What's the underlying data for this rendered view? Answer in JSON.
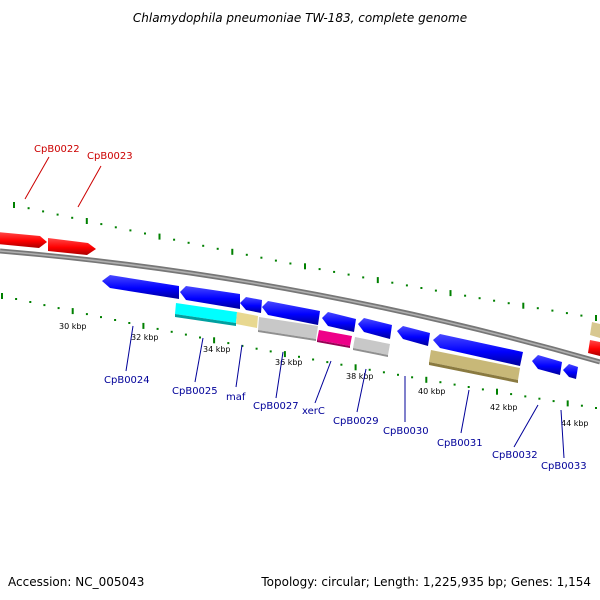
{
  "title": "Chlamydophila pneumoniae TW-183, complete genome",
  "accession": "Accession: NC_005043",
  "summary": "Topology: circular; Length: 1,225,935 bp; Genes: 1,154",
  "colors": {
    "forward_gene": "#ff0000",
    "reverse_gene": "#0000ff",
    "label_forward": "#cc0000",
    "label_reverse": "#000099",
    "backbone": "#808080",
    "ticks": "#008000",
    "cyan": "#00ffff",
    "tan": "#ddcc88",
    "grey": "#c8c8c8",
    "magenta": "#ee0088",
    "olive": "#c8b878"
  },
  "scale_labels": [
    "30 kbp",
    "32 kbp",
    "34 kbp",
    "36 kbp",
    "38 kbp",
    "40 kbp",
    "42 kbp",
    "44 kbp"
  ],
  "forward_labels": [
    "CpB0022",
    "CpB0023"
  ],
  "reverse_labels": [
    "CpB0024",
    "CpB0025",
    "maf",
    "CpB0027",
    "xerC",
    "CpB0029",
    "CpB0030",
    "CpB0031",
    "CpB0032",
    "CpB0033"
  ]
}
